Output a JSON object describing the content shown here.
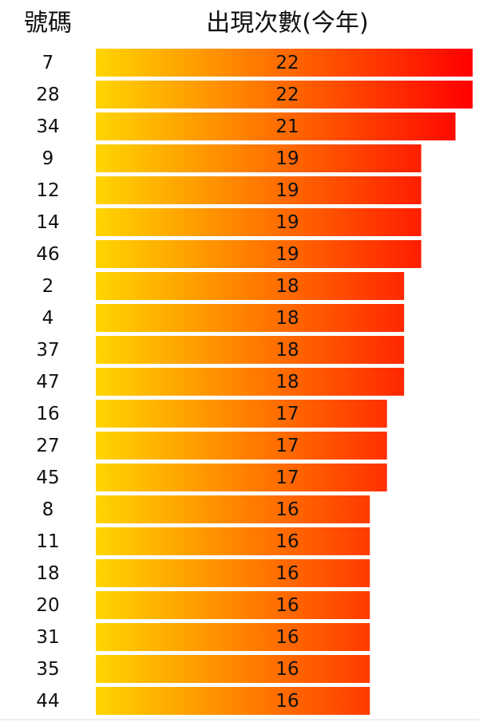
{
  "chart_data": {
    "type": "bar",
    "category_header": "號碼",
    "value_header": "出現次數(今年)",
    "categories": [
      "7",
      "28",
      "34",
      "9",
      "12",
      "14",
      "46",
      "2",
      "4",
      "37",
      "47",
      "16",
      "27",
      "45",
      "8",
      "11",
      "18",
      "20",
      "31",
      "35",
      "44"
    ],
    "values": [
      22,
      22,
      21,
      19,
      19,
      19,
      19,
      18,
      18,
      18,
      18,
      17,
      17,
      17,
      16,
      16,
      16,
      16,
      16,
      16,
      16
    ],
    "colors": [
      "#ffd500",
      "#ff0000"
    ]
  }
}
